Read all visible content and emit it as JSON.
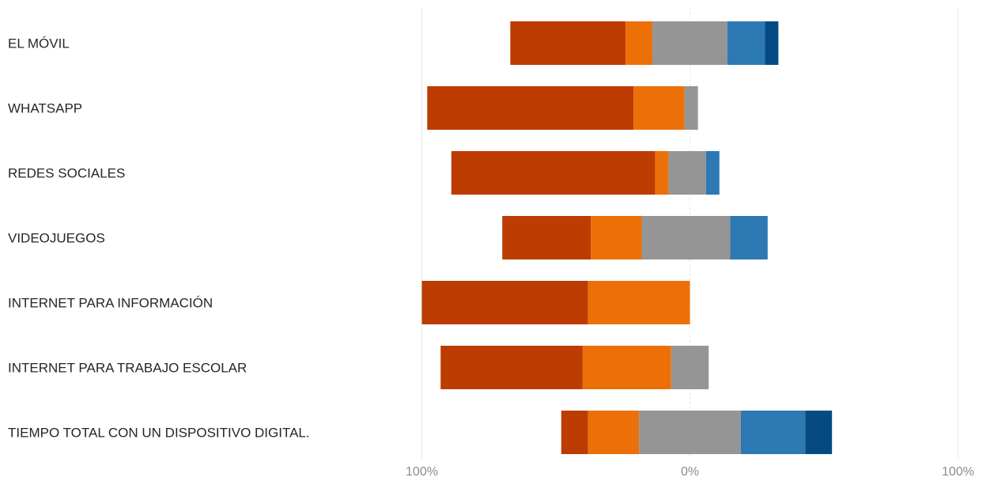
{
  "chart_data": {
    "type": "bar",
    "orientation": "horizontal",
    "stacked": "diverging",
    "title": "",
    "xlabel": "",
    "ylabel": "",
    "xlim": [
      -100,
      100
    ],
    "x_ticks": [
      "100%",
      "0%",
      "100%"
    ],
    "grid": true,
    "legend": "none",
    "categories": [
      "EL MÓVIL",
      "WHATSAPP",
      "REDES SOCIALES",
      "VIDEOJUEGOS",
      "INTERNET PARA INFORMACIÓN",
      "INTERNET PARA TRABAJO ESCOLAR",
      "TIEMPO TOTAL CON UN DISPOSITIVO DIGITAL."
    ],
    "series": [
      {
        "color": "#bc3c02",
        "values": [
          43,
          77,
          76,
          33,
          62,
          53,
          10
        ]
      },
      {
        "color": "#ec7007",
        "values": [
          10,
          19,
          5,
          19,
          38,
          33,
          19
        ]
      },
      {
        "color": "#959595",
        "values": [
          28,
          5,
          14,
          33,
          0,
          14,
          38
        ]
      },
      {
        "color": "#2c79b3",
        "values": [
          14,
          0,
          5,
          14,
          0,
          0,
          24
        ]
      },
      {
        "color": "#054a82",
        "values": [
          5,
          0,
          0,
          0,
          0,
          0,
          10
        ]
      }
    ],
    "start": [
      -67,
      -98,
      -89,
      -70,
      -100,
      -93,
      -48
    ]
  }
}
